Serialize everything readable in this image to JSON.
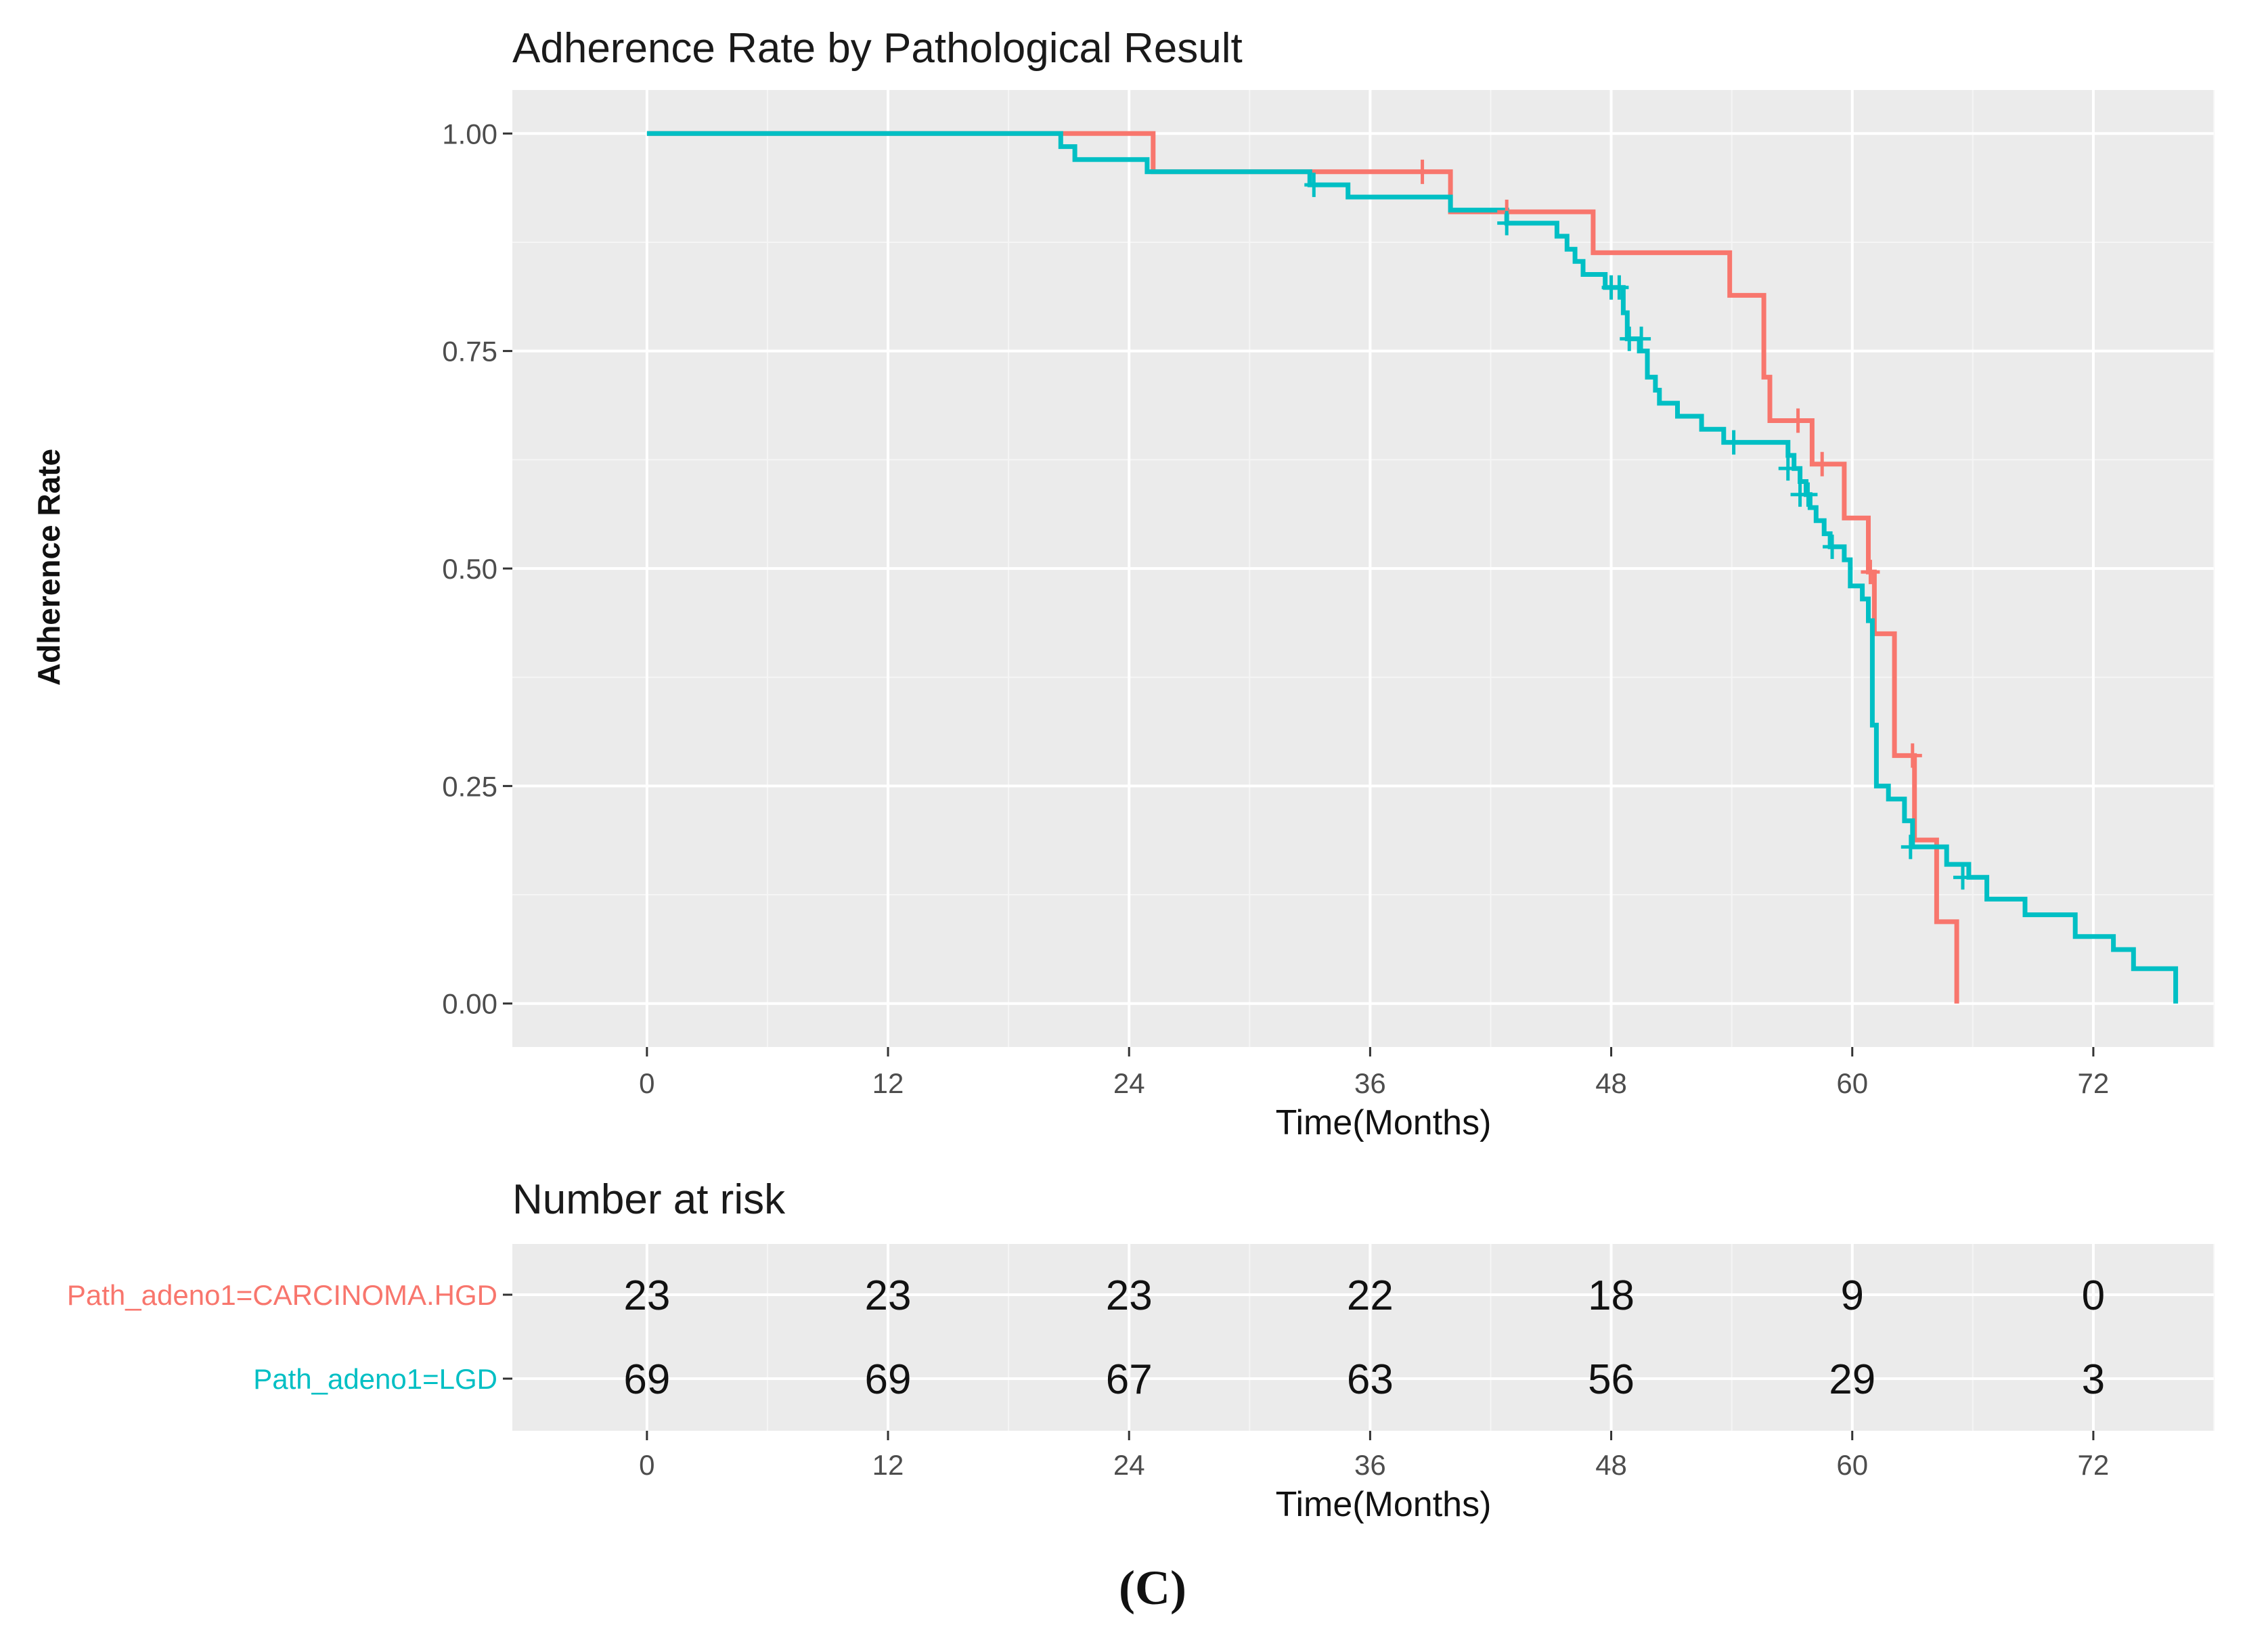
{
  "chart_data": {
    "type": "line",
    "subtype": "kaplan-meier step curve with number-at-risk table",
    "title": "Adherence Rate by Pathological Result",
    "xlabel": "Time(Months)",
    "ylabel": "Adherence Rate",
    "xlim": [
      -6.7,
      78
    ],
    "ylim": [
      -0.05,
      1.05
    ],
    "x_ticks": [
      0,
      12,
      24,
      36,
      48,
      60,
      72
    ],
    "x_tick_labels": [
      "0",
      "12",
      "24",
      "36",
      "48",
      "60",
      "72"
    ],
    "y_ticks": [
      0,
      0.25,
      0.5,
      0.75,
      1.0
    ],
    "y_tick_labels": [
      "0.00",
      "0.25",
      "0.50",
      "0.75",
      "1.00"
    ],
    "grid": true,
    "series": [
      {
        "name": "Path_adeno1=CARCINOMA.HGD",
        "color": "#F8766D",
        "steps": [
          [
            0,
            1.0
          ],
          [
            25.2,
            0.956
          ],
          [
            40.0,
            0.91
          ],
          [
            47.1,
            0.863
          ],
          [
            53.9,
            0.814
          ],
          [
            55.6,
            0.72
          ],
          [
            55.9,
            0.67
          ],
          [
            58.0,
            0.62
          ],
          [
            59.6,
            0.558
          ],
          [
            60.8,
            0.496
          ],
          [
            61.1,
            0.425
          ],
          [
            62.1,
            0.285
          ],
          [
            63.1,
            0.188
          ],
          [
            64.2,
            0.094
          ],
          [
            65.2,
            0.0
          ]
        ],
        "censor_marks": [
          [
            38.6,
            0.956
          ],
          [
            42.8,
            0.91
          ],
          [
            57.3,
            0.67
          ],
          [
            58.5,
            0.62
          ],
          [
            60.9,
            0.496
          ],
          [
            63.0,
            0.285
          ]
        ]
      },
      {
        "name": "Path_adeno1=LGD",
        "color": "#00BFC4",
        "steps": [
          [
            0,
            1.0
          ],
          [
            20.6,
            0.985
          ],
          [
            21.3,
            0.97
          ],
          [
            24.9,
            0.956
          ],
          [
            33.0,
            0.941
          ],
          [
            34.9,
            0.927
          ],
          [
            40.0,
            0.912
          ],
          [
            42.8,
            0.897
          ],
          [
            45.3,
            0.882
          ],
          [
            45.8,
            0.867
          ],
          [
            46.2,
            0.853
          ],
          [
            46.6,
            0.838
          ],
          [
            47.7,
            0.823
          ],
          [
            48.6,
            0.794
          ],
          [
            48.8,
            0.764
          ],
          [
            49.4,
            0.75
          ],
          [
            49.8,
            0.72
          ],
          [
            50.2,
            0.705
          ],
          [
            50.4,
            0.69
          ],
          [
            51.3,
            0.675
          ],
          [
            52.5,
            0.66
          ],
          [
            53.6,
            0.645
          ],
          [
            56.8,
            0.63
          ],
          [
            57.1,
            0.615
          ],
          [
            57.4,
            0.6
          ],
          [
            57.7,
            0.585
          ],
          [
            57.9,
            0.57
          ],
          [
            58.2,
            0.555
          ],
          [
            58.6,
            0.54
          ],
          [
            58.9,
            0.525
          ],
          [
            59.6,
            0.51
          ],
          [
            59.9,
            0.48
          ],
          [
            60.5,
            0.465
          ],
          [
            60.8,
            0.44
          ],
          [
            61.0,
            0.32
          ],
          [
            61.2,
            0.25
          ],
          [
            61.8,
            0.235
          ],
          [
            62.6,
            0.21
          ],
          [
            63.0,
            0.18
          ],
          [
            64.7,
            0.16
          ],
          [
            65.8,
            0.145
          ],
          [
            66.7,
            0.12
          ],
          [
            68.6,
            0.102
          ],
          [
            71.1,
            0.077
          ],
          [
            73.0,
            0.062
          ],
          [
            74.0,
            0.04
          ],
          [
            76.1,
            0.0
          ]
        ],
        "censor_marks": [
          [
            33.2,
            0.941
          ],
          [
            42.8,
            0.897
          ],
          [
            48.0,
            0.823
          ],
          [
            48.4,
            0.823
          ],
          [
            48.9,
            0.764
          ],
          [
            49.5,
            0.764
          ],
          [
            54.1,
            0.645
          ],
          [
            56.8,
            0.615
          ],
          [
            57.4,
            0.585
          ],
          [
            57.8,
            0.585
          ],
          [
            59.0,
            0.525
          ],
          [
            62.9,
            0.18
          ],
          [
            65.5,
            0.145
          ]
        ]
      }
    ],
    "risk_table": {
      "title": "Number at risk",
      "xlabel": "Time(Months)",
      "time_points": [
        0,
        12,
        24,
        36,
        48,
        60,
        72
      ],
      "time_labels": [
        "0",
        "12",
        "24",
        "36",
        "48",
        "60",
        "72"
      ],
      "rows": [
        {
          "label": "Path_adeno1=CARCINOMA.HGD",
          "color": "#F8766D",
          "counts": [
            "23",
            "23",
            "23",
            "22",
            "18",
            "9",
            "0"
          ]
        },
        {
          "label": "Path_adeno1=LGD",
          "color": "#00BFC4",
          "counts": [
            "69",
            "69",
            "67",
            "63",
            "56",
            "29",
            "3"
          ]
        }
      ]
    }
  },
  "panel_label": "(C)"
}
